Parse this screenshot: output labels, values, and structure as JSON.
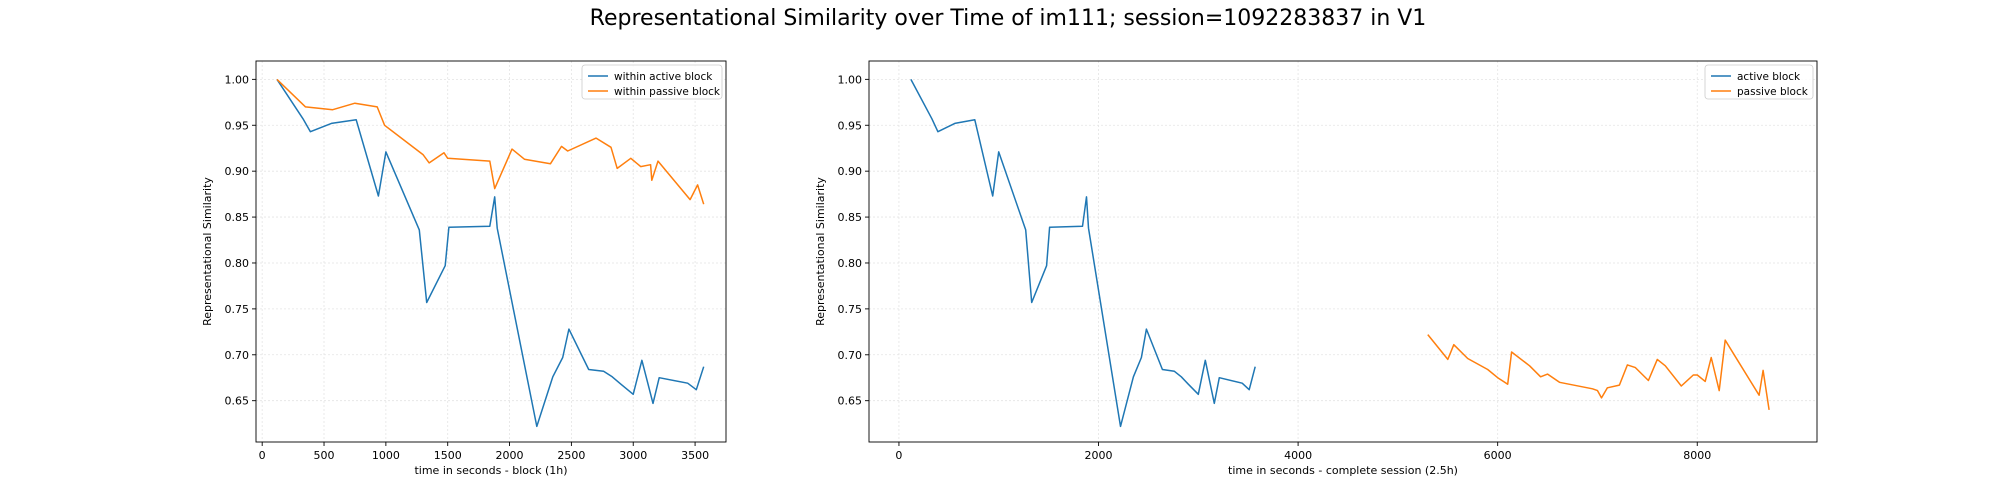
{
  "suptitle": "Representational Similarity over Time of im111; session=1092283837 in V1",
  "colors": {
    "blue": "#1f77b4",
    "orange": "#ff7f0e"
  },
  "chart_data": [
    {
      "type": "line",
      "xlabel": "time in seconds   -   block (1h)",
      "ylabel": "Representational Similarity",
      "xlim": [
        -50,
        3750
      ],
      "ylim": [
        0.605,
        1.02
      ],
      "xticks": [
        0,
        500,
        1000,
        1500,
        2000,
        2500,
        3000,
        3500
      ],
      "yticks": [
        0.65,
        0.7,
        0.75,
        0.8,
        0.85,
        0.9,
        0.95,
        1.0
      ],
      "grid": true,
      "legend_position": "top-right",
      "series": [
        {
          "name": "within active block",
          "color": "#1f77b4",
          "x": [
            120,
            330,
            390,
            560,
            760,
            940,
            1000,
            1270,
            1330,
            1480,
            1510,
            1840,
            1880,
            1900,
            2220,
            2350,
            2430,
            2480,
            2640,
            2760,
            2830,
            2900,
            3000,
            3070,
            3160,
            3210,
            3440,
            3510,
            3570
          ],
          "y": [
            1.0,
            0.957,
            0.943,
            0.952,
            0.956,
            0.873,
            0.921,
            0.836,
            0.757,
            0.797,
            0.839,
            0.84,
            0.872,
            0.838,
            0.622,
            0.676,
            0.697,
            0.728,
            0.684,
            0.682,
            0.676,
            0.668,
            0.657,
            0.694,
            0.647,
            0.675,
            0.669,
            0.662,
            0.687
          ]
        },
        {
          "name": "within passive block",
          "color": "#ff7f0e",
          "x": [
            120,
            350,
            570,
            750,
            930,
            990,
            1300,
            1350,
            1470,
            1500,
            1840,
            1880,
            2020,
            2120,
            2330,
            2420,
            2470,
            2700,
            2820,
            2870,
            2980,
            3060,
            3140,
            3150,
            3200,
            3460,
            3520,
            3570
          ],
          "y": [
            1.0,
            0.97,
            0.967,
            0.974,
            0.97,
            0.95,
            0.918,
            0.909,
            0.92,
            0.914,
            0.911,
            0.881,
            0.924,
            0.913,
            0.908,
            0.927,
            0.922,
            0.936,
            0.926,
            0.903,
            0.914,
            0.905,
            0.907,
            0.89,
            0.911,
            0.869,
            0.885,
            0.864
          ]
        }
      ]
    },
    {
      "type": "line",
      "xlabel": "time in seconds   -   complete session (2.5h)",
      "ylabel": "Representational Similarity",
      "xlim": [
        -300,
        9200
      ],
      "ylim": [
        0.605,
        1.02
      ],
      "xticks": [
        0,
        2000,
        4000,
        6000,
        8000
      ],
      "yticks": [
        0.65,
        0.7,
        0.75,
        0.8,
        0.85,
        0.9,
        0.95,
        1.0
      ],
      "grid": true,
      "legend_position": "top-right",
      "series": [
        {
          "name": "active block",
          "color": "#1f77b4",
          "x": [
            120,
            330,
            390,
            560,
            760,
            940,
            1000,
            1270,
            1330,
            1480,
            1510,
            1840,
            1880,
            1900,
            2220,
            2350,
            2430,
            2480,
            2640,
            2760,
            2830,
            2900,
            3000,
            3070,
            3160,
            3210,
            3440,
            3510,
            3570
          ],
          "y": [
            1.0,
            0.957,
            0.943,
            0.952,
            0.956,
            0.873,
            0.921,
            0.836,
            0.757,
            0.797,
            0.839,
            0.84,
            0.872,
            0.838,
            0.622,
            0.676,
            0.697,
            0.728,
            0.684,
            0.682,
            0.676,
            0.668,
            0.657,
            0.694,
            0.647,
            0.675,
            0.669,
            0.662,
            0.687
          ]
        },
        {
          "name": "passive block",
          "color": "#ff7f0e",
          "x": [
            5300,
            5500,
            5560,
            5700,
            5900,
            6000,
            6100,
            6140,
            6320,
            6430,
            6500,
            6620,
            6950,
            7000,
            7040,
            7100,
            7220,
            7300,
            7380,
            7510,
            7600,
            7680,
            7840,
            7960,
            8000,
            8080,
            8140,
            8220,
            8280,
            8370,
            8620,
            8660,
            8720
          ],
          "y": [
            0.722,
            0.695,
            0.711,
            0.696,
            0.684,
            0.675,
            0.668,
            0.703,
            0.688,
            0.676,
            0.679,
            0.67,
            0.663,
            0.661,
            0.653,
            0.664,
            0.667,
            0.689,
            0.686,
            0.672,
            0.695,
            0.688,
            0.666,
            0.678,
            0.678,
            0.671,
            0.697,
            0.661,
            0.716,
            0.7,
            0.656,
            0.683,
            0.64
          ]
        }
      ]
    }
  ]
}
